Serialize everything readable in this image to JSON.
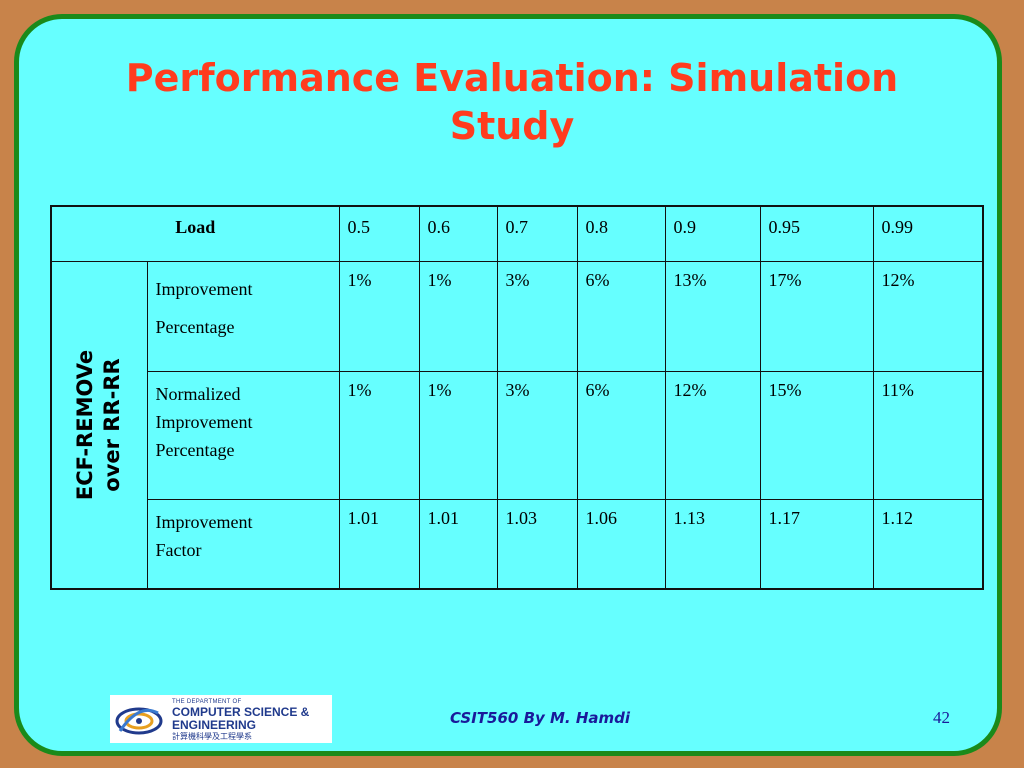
{
  "slide": {
    "title_line1": "Performance Evaluation: Simulation",
    "title_line2": "Study"
  },
  "table": {
    "load_label": "Load",
    "loads": [
      "0.5",
      "0.6",
      "0.7",
      "0.8",
      "0.9",
      "0.95",
      "0.99"
    ],
    "group_label_line1": "ECF-REMOVe",
    "group_label_line2": "over RR-RR",
    "rows": [
      {
        "label_lines": [
          "Improvement",
          "Percentage"
        ],
        "values": [
          "1%",
          "1%",
          "3%",
          "6%",
          "13%",
          "17%",
          "12%"
        ]
      },
      {
        "label_lines": [
          "Normalized",
          "Improvement",
          "Percentage"
        ],
        "values": [
          "1%",
          "1%",
          "3%",
          "6%",
          "12%",
          "15%",
          "11%"
        ]
      },
      {
        "label_lines": [
          "Improvement",
          "Factor"
        ],
        "values": [
          "1.01",
          "1.01",
          "1.03",
          "1.06",
          "1.13",
          "1.17",
          "1.12"
        ]
      }
    ]
  },
  "footer": {
    "logo": {
      "line1": "THE DEPARTMENT OF",
      "line2": "COMPUTER SCIENCE &",
      "line3": "ENGINEERING",
      "line4": "計算機科學及工程學系"
    },
    "center_text": "CSIT560 By M. Hamdi",
    "page_number": "42"
  },
  "colors": {
    "background": "#c8834a",
    "slide_fill": "#66ffff",
    "slide_border": "#1a8a1a",
    "title": "#ff3c1e",
    "footer_text": "#1a1a9a"
  }
}
